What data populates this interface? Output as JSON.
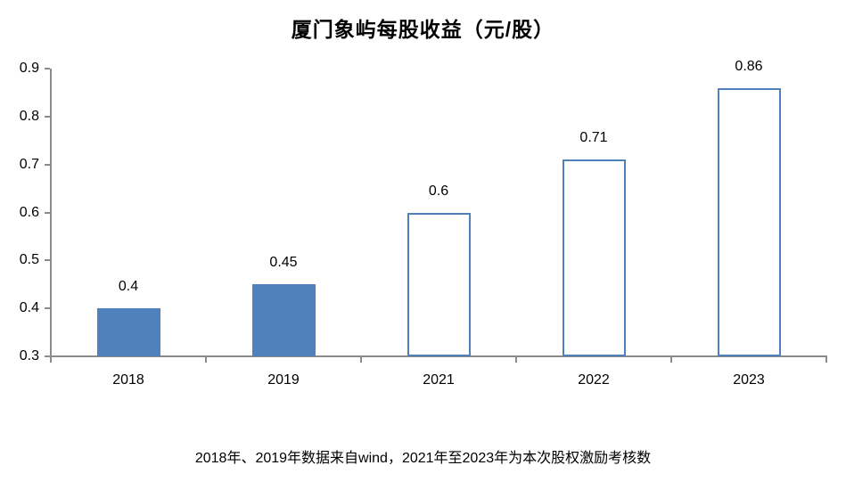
{
  "chart_data": {
    "type": "bar",
    "title": "厦门象屿每股收益（元/股）",
    "categories": [
      "2018",
      "2019",
      "2021",
      "2022",
      "2023"
    ],
    "values": [
      0.4,
      0.45,
      0.6,
      0.71,
      0.86
    ],
    "data_labels": [
      "0.4",
      "0.45",
      "0.6",
      "0.71",
      "0.86"
    ],
    "bar_styles": [
      "filled",
      "filled",
      "hollow",
      "hollow",
      "hollow"
    ],
    "ylim": [
      0.3,
      0.9
    ],
    "ytick_step": 0.1,
    "ytick_labels": [
      "0.3",
      "0.4",
      "0.5",
      "0.6",
      "0.7",
      "0.8",
      "0.9"
    ],
    "grid": "off",
    "legend": "none",
    "colors": {
      "bar_fill": "#4f81bd",
      "bar_stroke": "#4f81bd",
      "axis": "#8c8c8c",
      "text": "#000000"
    },
    "footnote": "2018年、2019年数据来自wind，2021年至2023年为本次股权激励考核数"
  }
}
